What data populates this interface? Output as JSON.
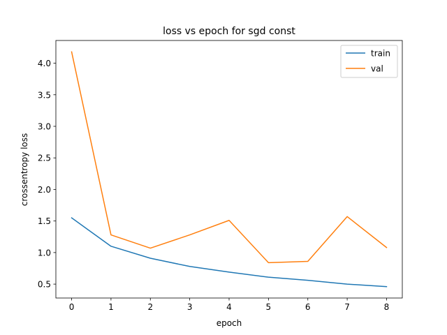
{
  "chart_data": {
    "type": "line",
    "title": "loss vs epoch for sgd const",
    "xlabel": "epoch",
    "ylabel": "crossentropy loss",
    "x": [
      0,
      1,
      2,
      3,
      4,
      5,
      6,
      7,
      8
    ],
    "xlim": [
      -0.4,
      8.4
    ],
    "ylim": [
      0.28,
      4.36
    ],
    "xticks": [
      "0",
      "1",
      "2",
      "3",
      "4",
      "5",
      "6",
      "7",
      "8"
    ],
    "yticks": [
      "0.5",
      "1.0",
      "1.5",
      "2.0",
      "2.5",
      "3.0",
      "3.5",
      "4.0"
    ],
    "grid": false,
    "legend_position": "top-right",
    "series": [
      {
        "name": "train",
        "color": "#1f77b4",
        "values": [
          1.55,
          1.1,
          0.91,
          0.78,
          0.69,
          0.61,
          0.56,
          0.5,
          0.46
        ]
      },
      {
        "name": "val",
        "color": "#ff7f0e",
        "values": [
          4.18,
          1.28,
          1.07,
          1.28,
          1.51,
          0.84,
          0.86,
          1.57,
          1.08
        ]
      }
    ]
  }
}
